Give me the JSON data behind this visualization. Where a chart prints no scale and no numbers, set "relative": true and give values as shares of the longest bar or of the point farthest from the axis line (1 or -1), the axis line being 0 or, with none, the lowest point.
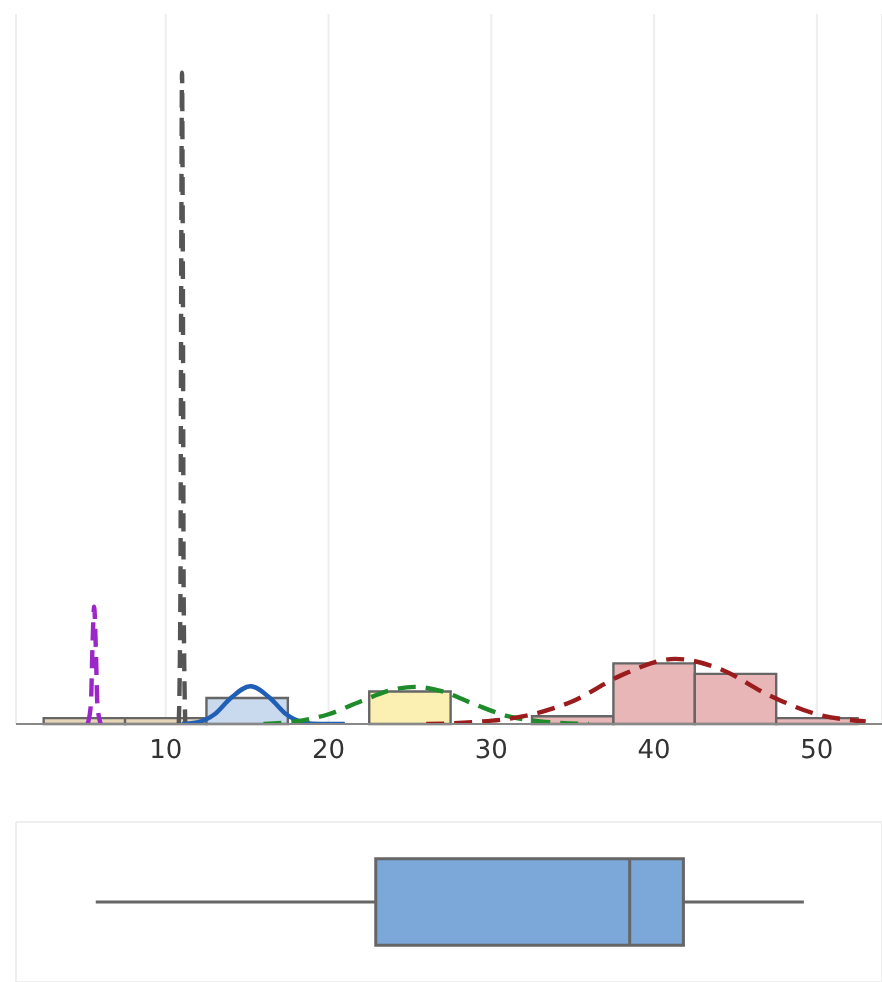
{
  "chart_data": [
    {
      "type": "histogram",
      "relative": true,
      "bins": [
        2.5,
        7.5,
        12.5,
        17.5,
        22.5,
        27.5,
        32.5,
        37.5,
        42.5,
        47.5,
        52.5
      ],
      "xlim": [
        0.8,
        54
      ],
      "xticks": [
        10,
        20,
        30,
        40,
        50
      ],
      "grid": "x",
      "series": [
        {
          "color": "#e6d6b8",
          "values": [
            0.009,
            0.009,
            null,
            null,
            null,
            null,
            null,
            null,
            null,
            null
          ]
        },
        {
          "color": "#c9d9ee",
          "values": [
            null,
            null,
            0.04,
            null,
            null,
            null,
            null,
            null,
            null,
            null
          ]
        },
        {
          "color": "#fbf0b2",
          "values": [
            null,
            null,
            null,
            null,
            0.05,
            null,
            null,
            null,
            null,
            null
          ]
        },
        {
          "color": "#e8b6b6",
          "values": [
            null,
            null,
            null,
            null,
            null,
            null,
            0.012,
            0.093,
            0.077,
            0.009
          ]
        },
        {
          "type": "line",
          "color": "#9b27c9",
          "line_style": "dashed",
          "x": [
            5.2,
            5.4,
            5.5,
            5.6,
            5.7,
            5.8,
            6.0
          ],
          "values": [
            0,
            0.03,
            0.12,
            0.18,
            0.12,
            0.03,
            0
          ]
        },
        {
          "type": "line",
          "color": "#555555",
          "line_style": "dashed",
          "x": [
            10.8,
            10.9,
            10.95,
            11,
            11.05,
            11.1,
            11.2
          ],
          "values": [
            0,
            0.2,
            0.7,
            1,
            0.7,
            0.2,
            0
          ]
        },
        {
          "type": "line",
          "color": "#1f5fb5",
          "line_style": "solid",
          "x": [
            11,
            12,
            13,
            14,
            15.2,
            16.4,
            17.4,
            18.4,
            19.5,
            21
          ],
          "values": [
            0,
            0.003,
            0.015,
            0.04,
            0.058,
            0.04,
            0.015,
            0.003,
            0,
            0
          ]
        },
        {
          "type": "line",
          "color": "#1e8c2a",
          "line_style": "dashed",
          "x": [
            16,
            18,
            20,
            22,
            24,
            25.3,
            27,
            29,
            31,
            33,
            36
          ],
          "values": [
            0,
            0.004,
            0.015,
            0.035,
            0.053,
            0.057,
            0.05,
            0.03,
            0.012,
            0.004,
            0
          ]
        },
        {
          "type": "line",
          "color": "#9b1c1c",
          "line_style": "dashed",
          "x": [
            26,
            29,
            32,
            35,
            38,
            41.3,
            44,
            47,
            50,
            53
          ],
          "values": [
            0,
            0.003,
            0.012,
            0.035,
            0.075,
            0.1,
            0.085,
            0.045,
            0.015,
            0.004
          ]
        }
      ]
    },
    {
      "type": "box",
      "orientation": "horizontal",
      "categories": [
        null
      ],
      "xlim": [
        0.8,
        54
      ],
      "xticks": [
        10,
        20,
        30,
        40,
        50
      ],
      "tick_labels": false,
      "grid": true,
      "series": [
        {
          "color": "#7ba7d9",
          "boxes": [
            {
              "low": 5.7,
              "q1": 22.9,
              "median": 38.5,
              "q3": 41.8,
              "high": 49.2
            }
          ]
        }
      ]
    }
  ]
}
